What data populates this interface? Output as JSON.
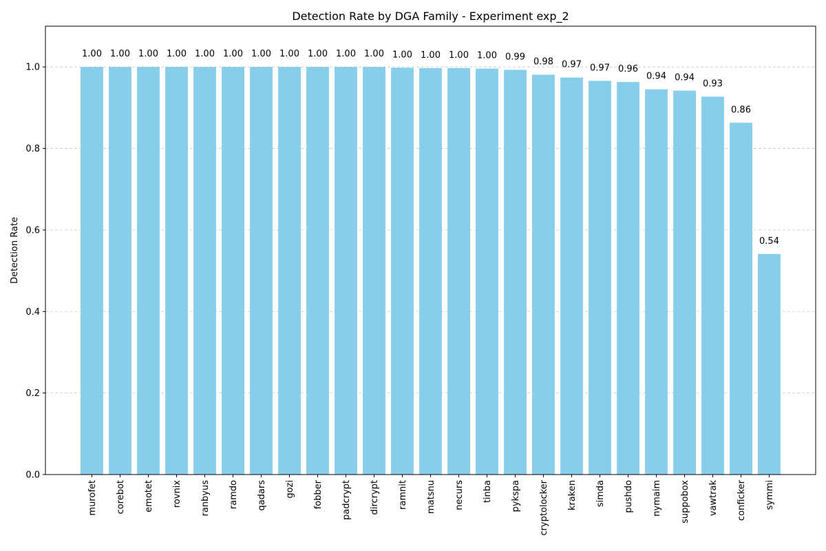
{
  "chart_data": {
    "type": "bar",
    "title": "Detection Rate by DGA Family - Experiment exp_2",
    "xlabel": "",
    "ylabel": "Detection Rate",
    "ylim": [
      0,
      1.1
    ],
    "yticks": [
      0.0,
      0.2,
      0.4,
      0.6,
      0.8,
      1.0
    ],
    "ytick_labels": [
      "0.0",
      "0.2",
      "0.4",
      "0.6",
      "0.8",
      "1.0"
    ],
    "grid": "y-dashed",
    "bar_color": "#87ceeb",
    "categories": [
      "murofet",
      "corebot",
      "emotet",
      "rovnix",
      "ranbyus",
      "ramdo",
      "qadars",
      "gozi",
      "fobber",
      "padcrypt",
      "dircrypt",
      "ramnit",
      "matsnu",
      "necurs",
      "tinba",
      "pykspa",
      "cryptolocker",
      "kraken",
      "simda",
      "pushdo",
      "nymaim",
      "suppobox",
      "vawtrak",
      "conficker",
      "symmi"
    ],
    "values": [
      1.0,
      1.0,
      1.0,
      1.0,
      1.0,
      1.0,
      1.0,
      1.0,
      1.0,
      1.0,
      1.0,
      0.998,
      0.997,
      0.997,
      0.996,
      0.993,
      0.981,
      0.974,
      0.966,
      0.963,
      0.945,
      0.942,
      0.927,
      0.863,
      0.541
    ],
    "value_labels": [
      "1.00",
      "1.00",
      "1.00",
      "1.00",
      "1.00",
      "1.00",
      "1.00",
      "1.00",
      "1.00",
      "1.00",
      "1.00",
      "1.00",
      "1.00",
      "1.00",
      "1.00",
      "0.99",
      "0.98",
      "0.97",
      "0.97",
      "0.96",
      "0.94",
      "0.94",
      "0.93",
      "0.86",
      "0.54"
    ]
  }
}
